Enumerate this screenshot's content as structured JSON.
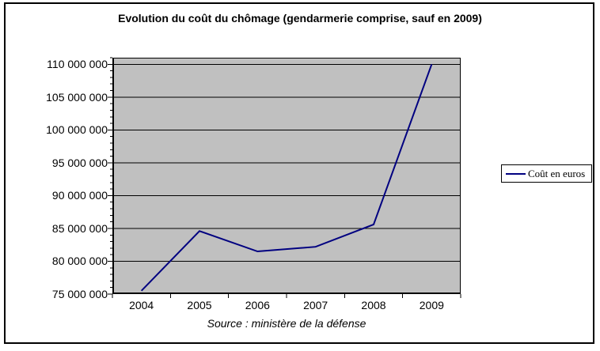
{
  "chart_data": {
    "type": "line",
    "title": "Evolution du coût du chômage (gendarmerie comprise, sauf en 2009)",
    "source_caption": "Source : ministère de la défense",
    "categories": [
      "2004",
      "2005",
      "2006",
      "2007",
      "2008",
      "2009"
    ],
    "series": [
      {
        "name": "Coût en euros",
        "color": "#000080",
        "values": [
          75500000,
          84600000,
          81500000,
          82200000,
          85600000,
          110000000
        ]
      }
    ],
    "y_axis": {
      "min": 75000000,
      "max": 111000000,
      "major_step": 5000000,
      "minor_step": 1000000,
      "ticks": [
        {
          "value": 75000000,
          "label": "75 000 000"
        },
        {
          "value": 80000000,
          "label": "80 000 000"
        },
        {
          "value": 85000000,
          "label": "85 000 000"
        },
        {
          "value": 90000000,
          "label": "90 000 000"
        },
        {
          "value": 95000000,
          "label": "95 000 000"
        },
        {
          "value": 100000000,
          "label": "100 000 000"
        },
        {
          "value": 105000000,
          "label": "105 000 000"
        },
        {
          "value": 110000000,
          "label": "110 000 000"
        }
      ]
    },
    "legend": {
      "position": "right",
      "label": "Coût en euros"
    },
    "grid": "horizontal-major",
    "colors": {
      "background": "#ffffff",
      "plot_background": "#c0c0c0",
      "gridline": "#000000",
      "line": "#000080",
      "text": "#000000"
    }
  }
}
